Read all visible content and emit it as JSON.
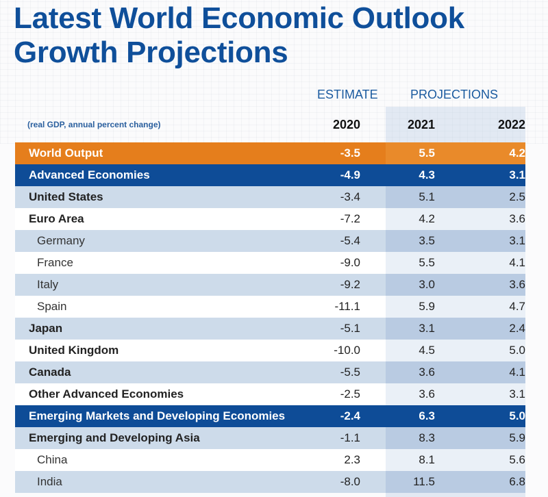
{
  "title_line1": "Latest World Economic Outlook",
  "title_line2": "Growth Projections",
  "header": {
    "estimate_label": "ESTIMATE",
    "projections_label": "PROJECTIONS",
    "subtitle": "(real GDP, annual percent change)",
    "years": [
      "2020",
      "2021",
      "2022"
    ]
  },
  "colors": {
    "title_blue": "#0f4f9a",
    "highlight_orange": "#e57e1c",
    "group_blue": "#0e4c97",
    "row_shade": "#cddbea"
  },
  "chart_data": {
    "type": "table",
    "title": "Latest World Economic Outlook Growth Projections",
    "subtitle": "(real GDP, annual percent change)",
    "column_groups": [
      {
        "label": "ESTIMATE",
        "columns": [
          "2020"
        ]
      },
      {
        "label": "PROJECTIONS",
        "columns": [
          "2021",
          "2022"
        ]
      }
    ],
    "columns": [
      "2020",
      "2021",
      "2022"
    ],
    "rows": [
      {
        "label": "World Output",
        "values": [
          "-3.5",
          "5.5",
          "4.2"
        ],
        "style": "orange"
      },
      {
        "label": "Advanced Economies",
        "values": [
          "-4.9",
          "4.3",
          "3.1"
        ],
        "style": "blue"
      },
      {
        "label": "United States",
        "values": [
          "-3.4",
          "5.1",
          "2.5"
        ],
        "style": "shade-bold"
      },
      {
        "label": "Euro Area",
        "values": [
          "-7.2",
          "4.2",
          "3.6"
        ],
        "style": "plain-bold"
      },
      {
        "label": "Germany",
        "values": [
          "-5.4",
          "3.5",
          "3.1"
        ],
        "style": "shade-sub"
      },
      {
        "label": "France",
        "values": [
          "-9.0",
          "5.5",
          "4.1"
        ],
        "style": "plain-sub"
      },
      {
        "label": "Italy",
        "values": [
          "-9.2",
          "3.0",
          "3.6"
        ],
        "style": "shade-sub"
      },
      {
        "label": "Spain",
        "values": [
          "-11.1",
          "5.9",
          "4.7"
        ],
        "style": "plain-sub"
      },
      {
        "label": "Japan",
        "values": [
          "-5.1",
          "3.1",
          "2.4"
        ],
        "style": "shade-bold"
      },
      {
        "label": "United Kingdom",
        "values": [
          "-10.0",
          "4.5",
          "5.0"
        ],
        "style": "plain-bold"
      },
      {
        "label": "Canada",
        "values": [
          "-5.5",
          "3.6",
          "4.1"
        ],
        "style": "shade-bold"
      },
      {
        "label": "Other Advanced Economies",
        "values": [
          "-2.5",
          "3.6",
          "3.1"
        ],
        "style": "plain-bold"
      },
      {
        "label": "Emerging Markets and Developing Economies",
        "values": [
          "-2.4",
          "6.3",
          "5.0"
        ],
        "style": "blue"
      },
      {
        "label": "Emerging and Developing Asia",
        "values": [
          "-1.1",
          "8.3",
          "5.9"
        ],
        "style": "shade-bold"
      },
      {
        "label": "China",
        "values": [
          "2.3",
          "8.1",
          "5.6"
        ],
        "style": "plain-sub"
      },
      {
        "label": "India",
        "values": [
          "-8.0",
          "11.5",
          "6.8"
        ],
        "style": "shade-sub"
      }
    ]
  }
}
